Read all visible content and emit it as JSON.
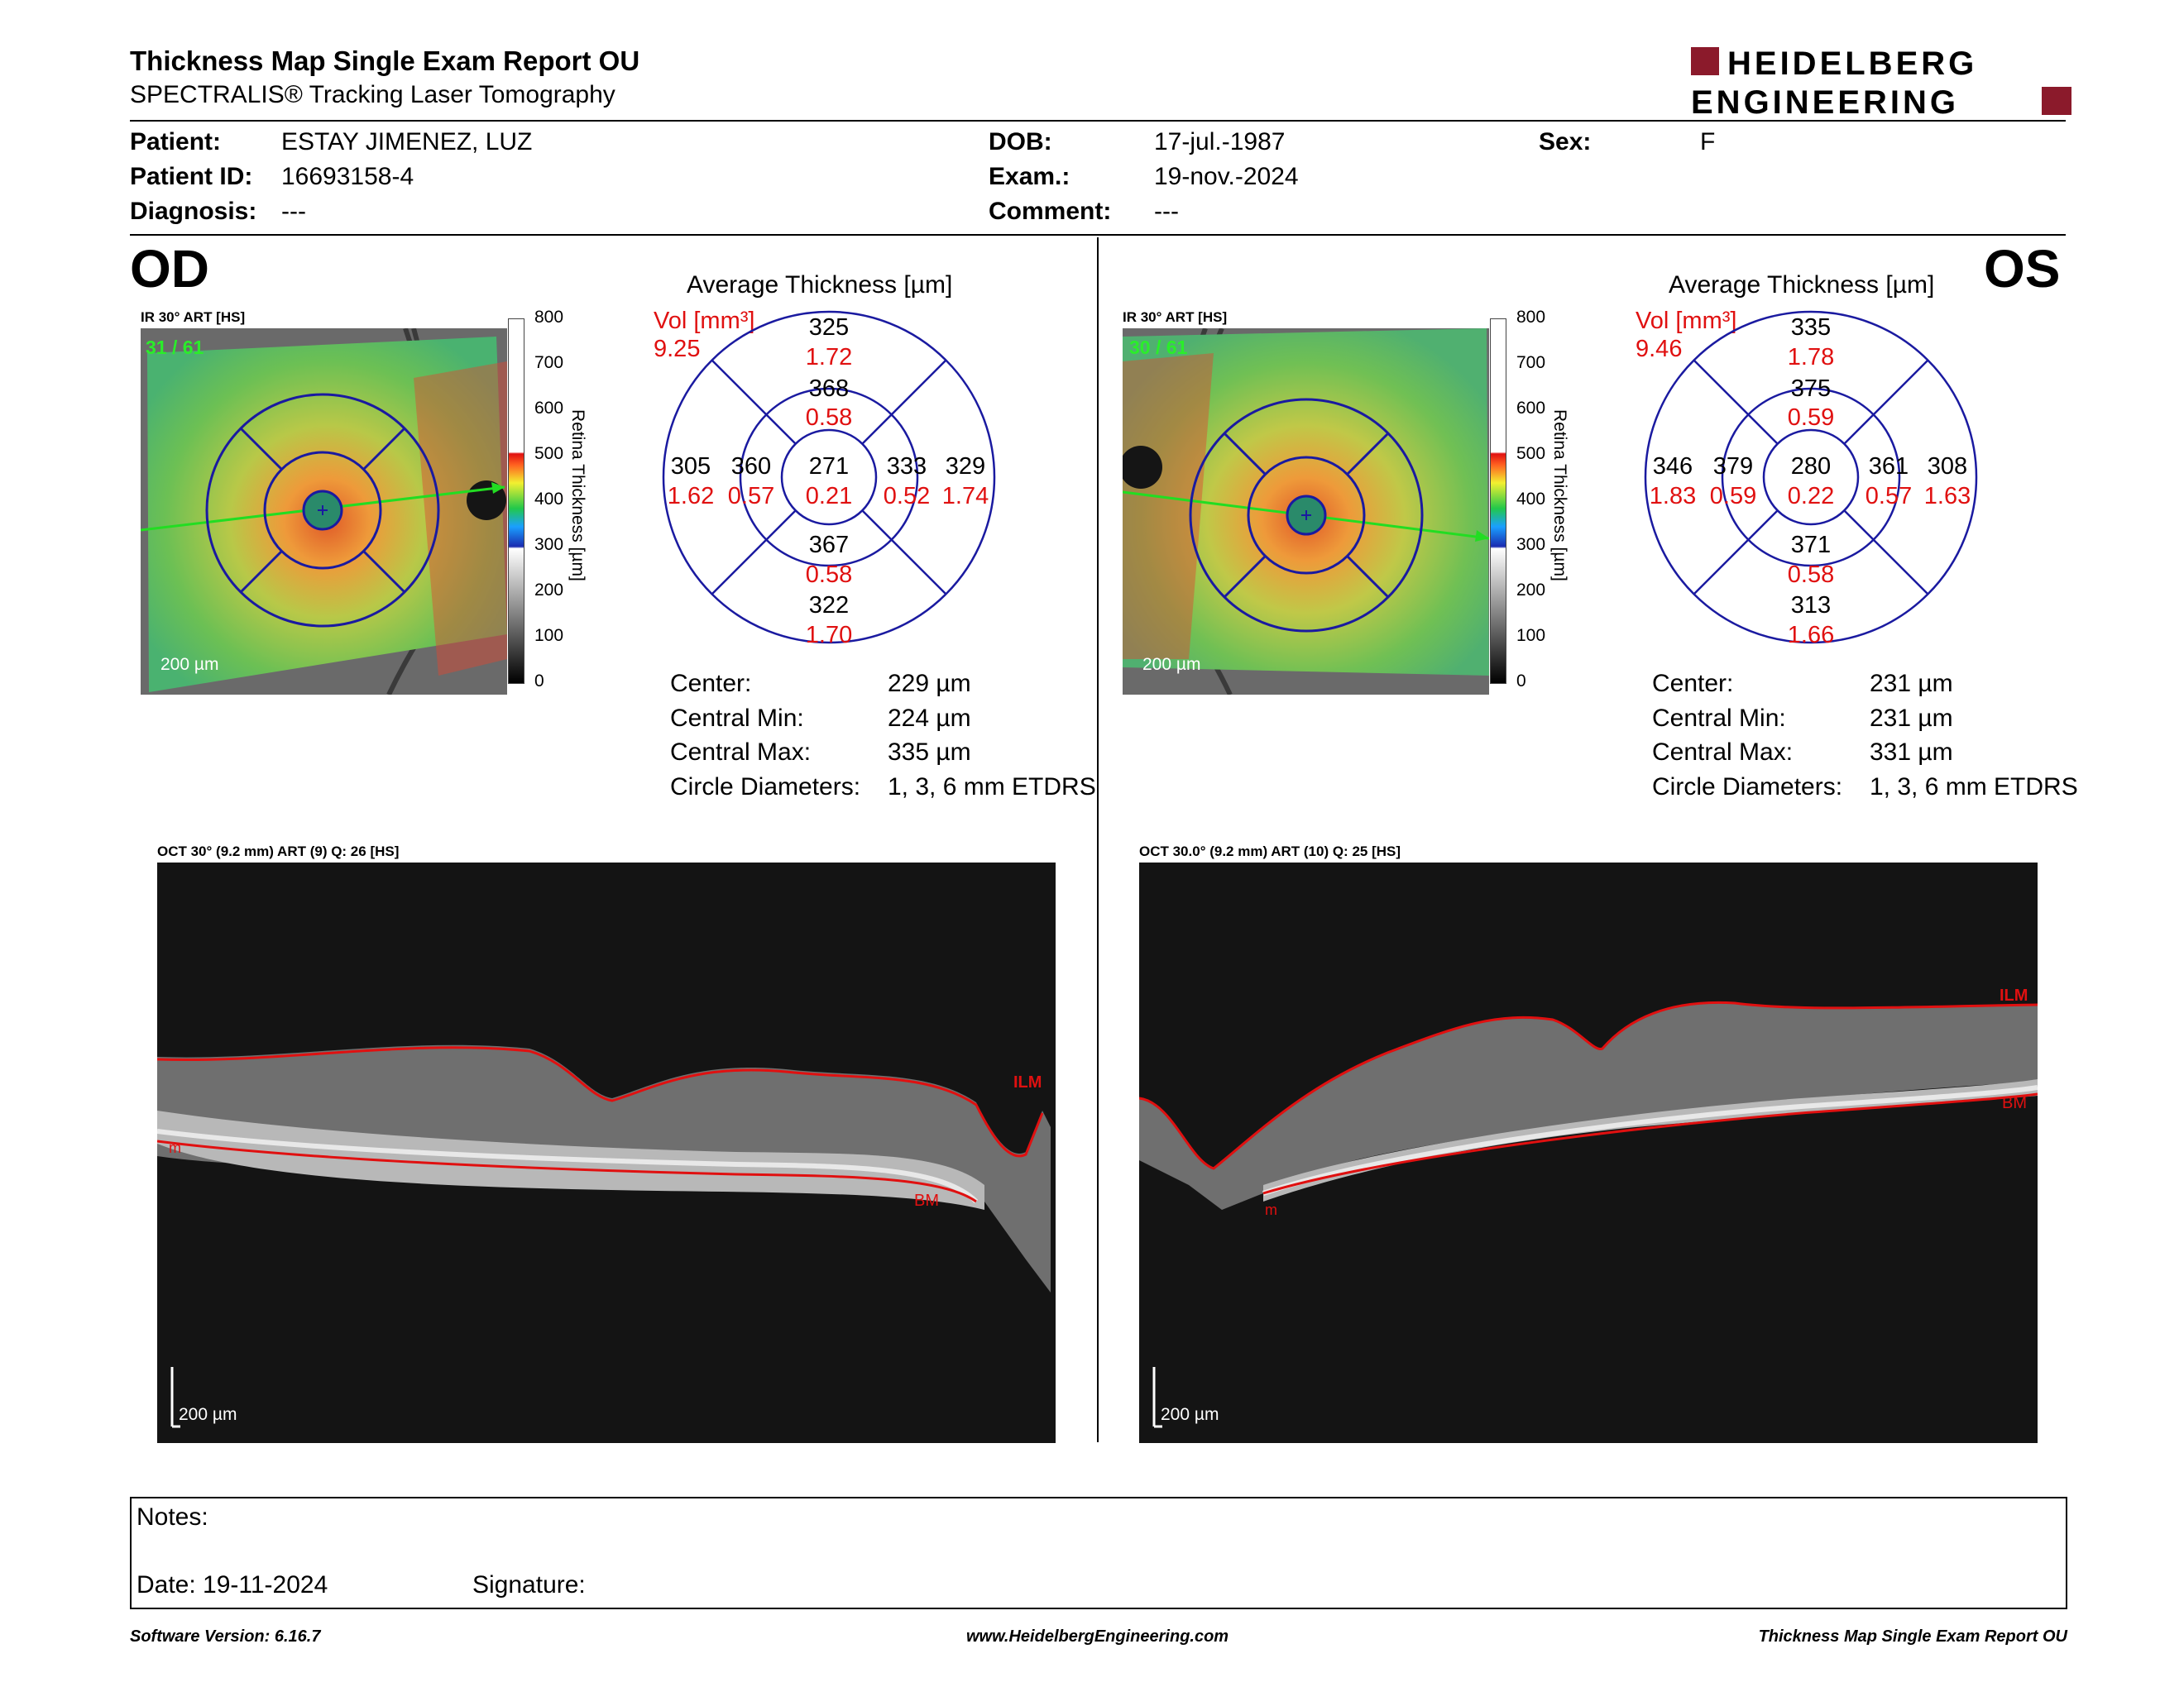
{
  "header": {
    "title": "Thickness Map Single Exam Report OU",
    "subtitle": "SPECTRALIS® Tracking Laser Tomography",
    "logo_line1": "HEIDELBERG",
    "logo_line2": "ENGINEERING"
  },
  "patient": {
    "patient_label": "Patient:",
    "patient_value": "ESTAY JIMENEZ, LUZ",
    "id_label": "Patient ID:",
    "id_value": "16693158-4",
    "diag_label": "Diagnosis:",
    "diag_value": "---",
    "dob_label": "DOB:",
    "dob_value": "17-jul.-1987",
    "exam_label": "Exam.:",
    "exam_value": "19-nov.-2024",
    "comment_label": "Comment:",
    "comment_value": "---",
    "sex_label": "Sex:",
    "sex_value": "F"
  },
  "od": {
    "eye_label": "OD",
    "fundus_caption": "IR 30° ART [HS]",
    "frame_counter": "31 / 61",
    "fundus_scale": "200 µm",
    "avg_title": "Average Thickness [µm]",
    "vol_label": "Vol [mm³]",
    "vol_total": "9.25",
    "etdrs": {
      "center": [
        "271",
        "0.21"
      ],
      "inner_sup": [
        "368",
        "0.58"
      ],
      "inner_nas_left": [
        "360",
        "0.57"
      ],
      "inner_right": [
        "333",
        "0.52"
      ],
      "inner_inf": [
        "367",
        "0.58"
      ],
      "outer_sup": [
        "325",
        "1.72"
      ],
      "outer_left": [
        "305",
        "1.62"
      ],
      "outer_right": [
        "329",
        "1.74"
      ],
      "outer_inf": [
        "322",
        "1.70"
      ]
    },
    "summary": [
      {
        "label": "Center:",
        "value": "229 µm"
      },
      {
        "label": "Central Min:",
        "value": "224 µm"
      },
      {
        "label": "Central Max:",
        "value": "335 µm"
      },
      {
        "label": "Circle Diameters:",
        "value": "1, 3, 6 mm ETDRS"
      }
    ],
    "oct_caption": "OCT 30° (9.2 mm) ART (9) Q: 26 [HS]",
    "oct_scale": "200 µm",
    "oct_labels": {
      "ilm": "ILM",
      "bm": "BM",
      "m": "m"
    }
  },
  "os": {
    "eye_label": "OS",
    "fundus_caption": "IR 30° ART [HS]",
    "frame_counter": "30 / 61",
    "fundus_scale": "200 µm",
    "avg_title": "Average Thickness [µm]",
    "vol_label": "Vol [mm³]",
    "vol_total": "9.46",
    "etdrs": {
      "center": [
        "280",
        "0.22"
      ],
      "inner_sup": [
        "375",
        "0.59"
      ],
      "inner_nas_left": [
        "379",
        "0.59"
      ],
      "inner_right": [
        "361",
        "0.57"
      ],
      "inner_inf": [
        "371",
        "0.58"
      ],
      "outer_sup": [
        "335",
        "1.78"
      ],
      "outer_left": [
        "346",
        "1.83"
      ],
      "outer_right": [
        "308",
        "1.63"
      ],
      "outer_inf": [
        "313",
        "1.66"
      ]
    },
    "summary": [
      {
        "label": "Center:",
        "value": "231 µm"
      },
      {
        "label": "Central Min:",
        "value": "231 µm"
      },
      {
        "label": "Central Max:",
        "value": "331 µm"
      },
      {
        "label": "Circle Diameters:",
        "value": "1, 3, 6 mm ETDRS"
      }
    ],
    "oct_caption": "OCT 30.0° (9.2 mm) ART (10) Q: 25 [HS]",
    "oct_scale": "200 µm",
    "oct_labels": {
      "ilm": "ILM",
      "bm": "BM",
      "m": "m"
    }
  },
  "colorbar": {
    "ticks": [
      "800",
      "700",
      "600",
      "500",
      "400",
      "300",
      "200",
      "100",
      "0"
    ],
    "axis_label": "Retina Thickness [µm]"
  },
  "notes": {
    "notes_label": "Notes:",
    "date_label": "Date: 19-11-2024",
    "signature_label": "Signature:"
  },
  "footer": {
    "left": "Software Version: 6.16.7",
    "center": "www.HeidelbergEngineering.com",
    "right": "Thickness Map Single Exam Report OU"
  },
  "colors": {
    "logo_red": "#8b1a2b",
    "etdrs_blue": "#1a1aa0",
    "volume_red": "#e01010",
    "scan_line_green": "#22dd22"
  }
}
